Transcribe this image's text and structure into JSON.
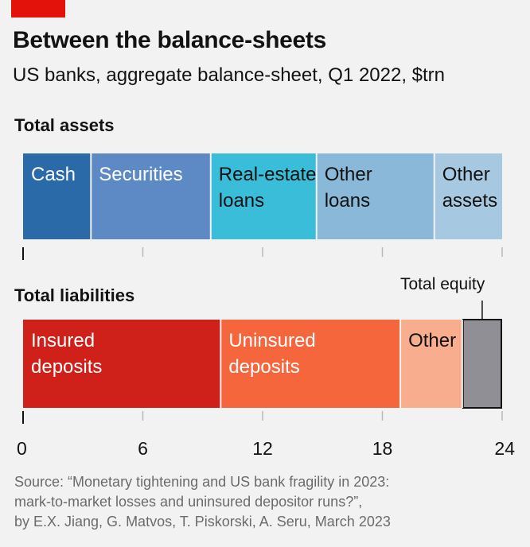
{
  "header": {
    "title": "Between the balance-sheets",
    "subtitle": "US banks, aggregate balance-sheet, Q1 2022, $trn"
  },
  "source": {
    "line1": "Source: “Monetary tightening and US bank fragility in 2023:",
    "line2": "mark-to-market losses and uninsured depositor runs?”,",
    "line3": "by E.X. Jiang, G. Matvos, T. Piskorski, A. Seru, March 2023"
  },
  "chart_data": {
    "type": "bar",
    "orientation": "horizontal-stacked",
    "unit": "$trn",
    "xlim": [
      0,
      24
    ],
    "x_ticks": [
      0,
      6,
      12,
      18,
      24
    ],
    "bars": [
      {
        "label": "Total assets",
        "segments": [
          {
            "name": "Cash",
            "lines": [
              "Cash"
            ],
            "value": 3.4,
            "color": "#2a6aa8",
            "text_color": "#ffffff"
          },
          {
            "name": "Securities",
            "lines": [
              "Securities"
            ],
            "value": 6.0,
            "color": "#5d89c4",
            "text_color": "#ffffff"
          },
          {
            "name": "Real-estate loans",
            "lines": [
              "Real-estate",
              "loans"
            ],
            "value": 5.3,
            "color": "#39bdd9",
            "text_color": "#121212"
          },
          {
            "name": "Other loans",
            "lines": [
              "Other",
              "loans"
            ],
            "value": 5.9,
            "color": "#8ab8d8",
            "text_color": "#121212"
          },
          {
            "name": "Other assets",
            "lines": [
              "Other",
              "assets"
            ],
            "value": 3.4,
            "color": "#a6c8e1",
            "text_color": "#121212"
          }
        ]
      },
      {
        "label": "Total liabilities",
        "segments": [
          {
            "name": "Insured deposits",
            "lines": [
              "Insured",
              "deposits"
            ],
            "value": 9.9,
            "color": "#d0201a",
            "text_color": "#ffffff"
          },
          {
            "name": "Uninsured deposits",
            "lines": [
              "Uninsured",
              "deposits"
            ],
            "value": 9.0,
            "color": "#f5663c",
            "text_color": "#ffffff"
          },
          {
            "name": "Other",
            "lines": [
              "Other"
            ],
            "value": 3.1,
            "color": "#f9ad8f",
            "text_color": "#121212"
          },
          {
            "name": "Total equity",
            "lines": [],
            "value": 2.0,
            "color": "#8f8f95",
            "text_color": "#121212"
          }
        ]
      }
    ],
    "annotations": [
      "Total equity"
    ]
  }
}
